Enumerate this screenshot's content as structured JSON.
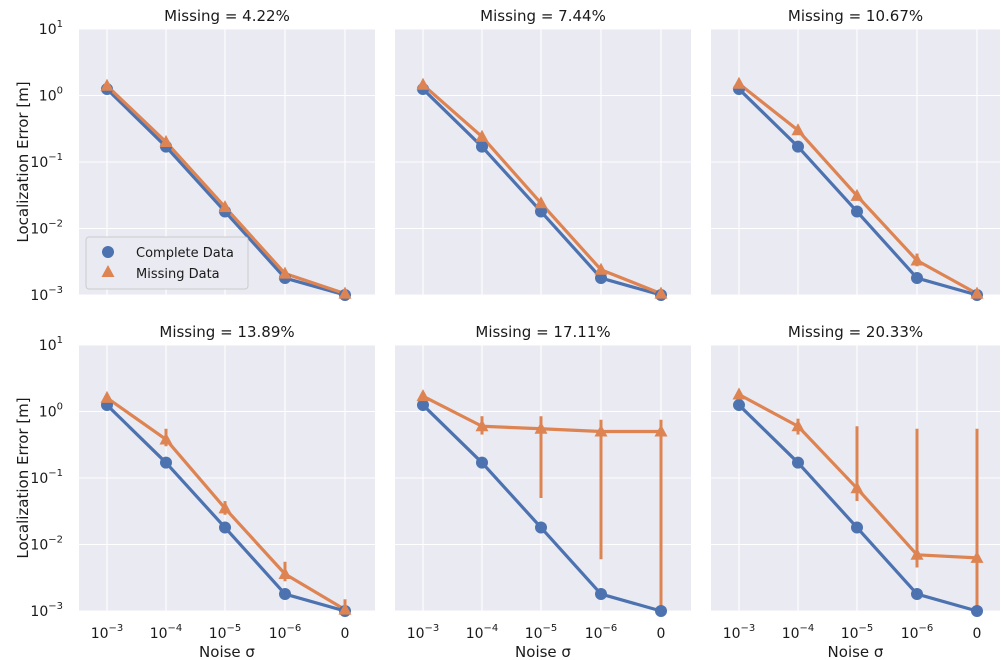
{
  "chart_data": {
    "type": "line",
    "layout_rows": 2,
    "layout_cols": 3,
    "x_tick_labels": [
      {
        "base": "10",
        "exp": "−3"
      },
      {
        "base": "10",
        "exp": "−4"
      },
      {
        "base": "10",
        "exp": "−5"
      },
      {
        "base": "10",
        "exp": "−6"
      },
      {
        "base": "0",
        "exp": ""
      }
    ],
    "y_tick_labels": [
      {
        "base": "10",
        "exp": "1"
      },
      {
        "base": "10",
        "exp": "0"
      },
      {
        "base": "10",
        "exp": "−1"
      },
      {
        "base": "10",
        "exp": "−2"
      },
      {
        "base": "10",
        "exp": "−3"
      }
    ],
    "x_noise_values": [
      0.001,
      0.0001,
      1e-05,
      1e-06,
      0
    ],
    "ylabel": "Localization Error [m]",
    "xlabel": "Noise σ",
    "yscale": "log",
    "ylim": [
      0.001,
      10
    ],
    "grid": true,
    "legend_position": "lower-left",
    "legend_panel": 0,
    "colors": {
      "complete": "#4c72b0",
      "missing": "#dd8452",
      "panel_bg": "#eaeaf2",
      "grid": "#ffffff"
    },
    "series_meta": [
      {
        "name": "Complete Data",
        "marker": "circle"
      },
      {
        "name": "Missing Data",
        "marker": "triangle"
      }
    ],
    "panels": [
      {
        "title": "Missing = 4.22%",
        "complete": [
          1.25,
          0.17,
          0.018,
          0.0018,
          0.001
        ],
        "missing": [
          1.4,
          0.2,
          0.021,
          0.0021,
          0.00105
        ],
        "missing_err_low": [
          1.3,
          0.18,
          0.019,
          0.0019,
          0.001
        ],
        "missing_err_high": [
          1.5,
          0.23,
          0.024,
          0.0024,
          0.0011
        ]
      },
      {
        "title": "Missing = 7.44%",
        "complete": [
          1.25,
          0.17,
          0.018,
          0.0018,
          0.001
        ],
        "missing": [
          1.45,
          0.24,
          0.024,
          0.0024,
          0.00105
        ],
        "missing_err_low": [
          1.35,
          0.2,
          0.021,
          0.0021,
          0.001
        ],
        "missing_err_high": [
          1.6,
          0.28,
          0.028,
          0.0028,
          0.0011
        ]
      },
      {
        "title": "Missing = 10.67%",
        "complete": [
          1.25,
          0.17,
          0.018,
          0.0018,
          0.001
        ],
        "missing": [
          1.5,
          0.3,
          0.031,
          0.0033,
          0.00105
        ],
        "missing_err_low": [
          1.4,
          0.26,
          0.027,
          0.0027,
          0.001
        ],
        "missing_err_high": [
          1.7,
          0.35,
          0.036,
          0.0042,
          0.0011
        ]
      },
      {
        "title": "Missing = 13.89%",
        "complete": [
          1.25,
          0.17,
          0.018,
          0.0018,
          0.001
        ],
        "missing": [
          1.6,
          0.38,
          0.035,
          0.0036,
          0.00105
        ],
        "missing_err_low": [
          1.4,
          0.3,
          0.028,
          0.0028,
          0.001
        ],
        "missing_err_high": [
          1.8,
          0.55,
          0.045,
          0.0055,
          0.0015
        ]
      },
      {
        "title": "Missing = 17.11%",
        "complete": [
          1.25,
          0.17,
          0.018,
          0.0018,
          0.001
        ],
        "missing": [
          1.7,
          0.6,
          0.55,
          0.5,
          0.5
        ],
        "missing_err_low": [
          1.5,
          0.45,
          0.05,
          0.006,
          0.001
        ],
        "missing_err_high": [
          1.9,
          0.85,
          0.85,
          0.75,
          0.75
        ]
      },
      {
        "title": "Missing = 20.33%",
        "complete": [
          1.25,
          0.17,
          0.018,
          0.0018,
          0.001
        ],
        "missing": [
          1.8,
          0.6,
          0.07,
          0.007,
          0.0063
        ],
        "missing_err_low": [
          1.6,
          0.45,
          0.045,
          0.0045,
          0.001
        ],
        "missing_err_high": [
          2.0,
          0.78,
          0.6,
          0.55,
          0.55
        ]
      }
    ]
  }
}
